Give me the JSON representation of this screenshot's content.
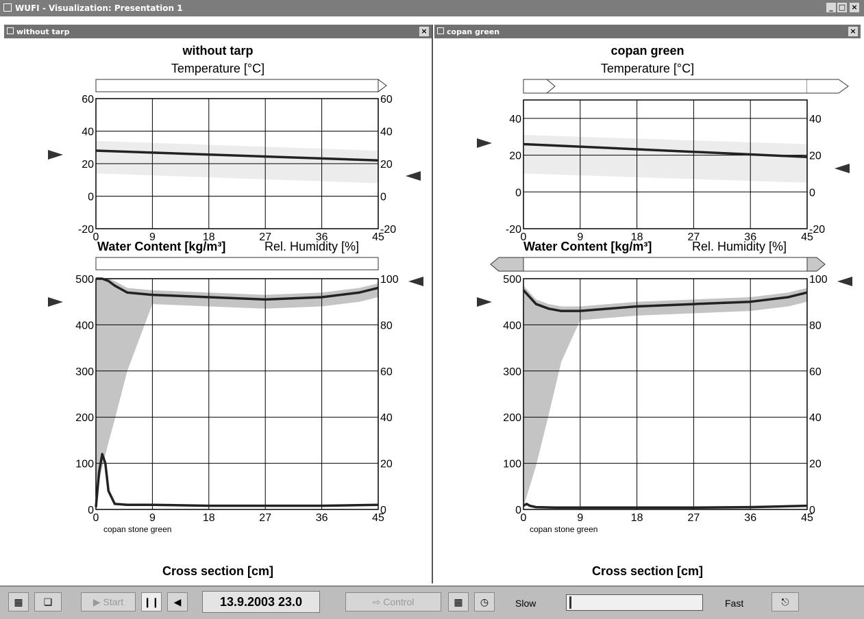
{
  "window": {
    "title": "WUFI - Visualization: Presentation 1",
    "controls": [
      "_",
      "□",
      "×"
    ]
  },
  "panels": [
    {
      "window_title": "without tarp",
      "title": "without tarp",
      "temp_label": "Temperature [°C]",
      "water_label": "Water Content [kg/m³]",
      "rh_label": "Rel. Humidity [%]",
      "xlabel": "Cross section [cm]",
      "layer_name": "copan stone green",
      "close": "×"
    },
    {
      "window_title": "copan green",
      "title": "copan green",
      "temp_label": "Temperature [°C]",
      "water_label": "Water Content [kg/m³]",
      "rh_label": "Rel. Humidity [%]",
      "xlabel": "Cross section [cm]",
      "layer_name": "copan stone green",
      "close": "×"
    }
  ],
  "toolbar": {
    "start_label": "Start",
    "date": "13.9.2003  23.0",
    "control_label": "Control",
    "slow_label": "Slow",
    "fast_label": "Fast",
    "icons": [
      "layout-icon",
      "copy-icon",
      "play-icon",
      "pause-icon",
      "step-back-icon",
      "control-icon",
      "table-icon",
      "clock-icon",
      "exit-icon"
    ]
  },
  "chart_data": [
    {
      "type": "line",
      "panel": "without tarp",
      "title": "Temperature [°C]",
      "xlim": [
        0,
        45
      ],
      "ylim": [
        -20,
        60
      ],
      "y_ticks": [
        -20,
        0,
        20,
        40,
        60
      ],
      "y2_ticks": [
        -20,
        0,
        20,
        40,
        60
      ],
      "x_ticks": [
        0,
        9,
        18,
        27,
        36,
        45
      ],
      "series": [
        {
          "x": [
            0,
            45
          ],
          "y": [
            28,
            22
          ]
        }
      ],
      "band": {
        "x": [
          0,
          45
        ],
        "low": [
          14,
          8
        ],
        "high": [
          34,
          28
        ]
      }
    },
    {
      "type": "line",
      "panel": "without tarp",
      "title": "Water Content [kg/m³] / Rel. Humidity [%]",
      "xlabel": "Cross section [cm]",
      "xlim": [
        0,
        45
      ],
      "ylim": [
        0,
        500
      ],
      "y2lim": [
        0,
        100
      ],
      "y_ticks": [
        0,
        100,
        200,
        300,
        400,
        500
      ],
      "y2_ticks": [
        0,
        20,
        40,
        60,
        80,
        100
      ],
      "x_ticks": [
        0,
        9,
        18,
        27,
        36,
        45
      ],
      "series": [
        {
          "axis": "y2",
          "x": [
            0,
            1,
            2,
            3,
            5,
            9,
            18,
            27,
            36,
            42,
            45
          ],
          "y": [
            100,
            100,
            99,
            97,
            94,
            93,
            92,
            91,
            92,
            94,
            96
          ]
        },
        {
          "axis": "y",
          "x": [
            0,
            0.5,
            1,
            1.5,
            2,
            3,
            5,
            9,
            18,
            27,
            36,
            45
          ],
          "y": [
            5,
            80,
            120,
            100,
            40,
            12,
            10,
            10,
            8,
            8,
            8,
            10
          ]
        }
      ]
    },
    {
      "type": "line",
      "panel": "copan green",
      "title": "Temperature [°C]",
      "xlim": [
        0,
        45
      ],
      "ylim": [
        -20,
        50
      ],
      "y_ticks": [
        -20,
        0,
        20,
        40
      ],
      "y2_ticks": [
        -20,
        0,
        20,
        40
      ],
      "x_ticks": [
        0,
        9,
        18,
        27,
        36,
        45
      ],
      "series": [
        {
          "x": [
            0,
            45
          ],
          "y": [
            26,
            19
          ]
        }
      ],
      "band": {
        "x": [
          0,
          45
        ],
        "low": [
          10,
          5
        ],
        "high": [
          31,
          26
        ]
      }
    },
    {
      "type": "line",
      "panel": "copan green",
      "title": "Water Content [kg/m³] / Rel. Humidity [%]",
      "xlabel": "Cross section [cm]",
      "xlim": [
        0,
        45
      ],
      "ylim": [
        0,
        500
      ],
      "y2lim": [
        0,
        100
      ],
      "y_ticks": [
        0,
        100,
        200,
        300,
        400,
        500
      ],
      "y2_ticks": [
        0,
        20,
        40,
        60,
        80,
        100
      ],
      "x_ticks": [
        0,
        9,
        18,
        27,
        36,
        45
      ],
      "series": [
        {
          "axis": "y2",
          "x": [
            0,
            1,
            2,
            4,
            6,
            9,
            18,
            27,
            36,
            42,
            45
          ],
          "y": [
            95,
            92,
            89,
            87,
            86,
            86,
            88,
            89,
            90,
            92,
            94
          ]
        },
        {
          "axis": "y",
          "x": [
            0,
            0.5,
            1,
            2,
            5,
            9,
            18,
            27,
            36,
            45
          ],
          "y": [
            8,
            12,
            8,
            5,
            4,
            4,
            4,
            4,
            5,
            8
          ]
        }
      ]
    }
  ]
}
